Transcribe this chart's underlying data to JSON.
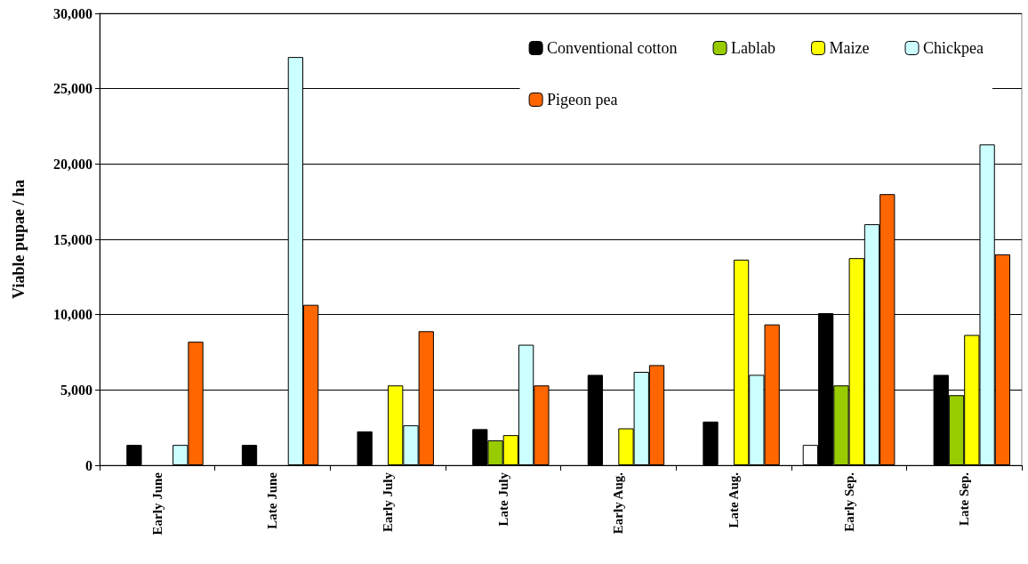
{
  "chart_data": {
    "type": "bar",
    "ylabel": "Viable pupae / ha",
    "categories": [
      "Early June",
      "Late June",
      "Early July",
      "Late July",
      "Early Aug.",
      "Late Aug.",
      "Early Sep.",
      "Late Sep."
    ],
    "series": [
      {
        "color": "#ffffff",
        "values": [
          null,
          null,
          null,
          null,
          null,
          null,
          1350,
          null
        ]
      },
      {
        "name": "Conventional cotton",
        "color": "#000000",
        "values": [
          1350,
          1350,
          2250,
          2400,
          6000,
          2900,
          10100,
          6000
        ]
      },
      {
        "name": "Lablab",
        "color": "#99cc00",
        "values": [
          null,
          null,
          null,
          1650,
          null,
          null,
          5300,
          4650
        ]
      },
      {
        "name": "Maize",
        "color": "#ffff00",
        "values": [
          null,
          null,
          5300,
          2000,
          2450,
          13650,
          13750,
          8650
        ]
      },
      {
        "name": "Chickpea",
        "color": "#ccffff",
        "values": [
          1350,
          27100,
          2650,
          8000,
          6200,
          6000,
          16000,
          21300
        ]
      },
      {
        "name": "Pigeon pea",
        "color": "#ff6600",
        "values": [
          8200,
          10650,
          8900,
          5300,
          6650,
          9350,
          18000,
          14000
        ]
      }
    ],
    "ylim": [
      0,
      30000
    ],
    "yticks": [
      0,
      {
        "value": 5000,
        "label": "5,000"
      },
      {
        "value": 10000,
        "label": "10,000"
      },
      {
        "value": 15000,
        "label": "15,000"
      },
      {
        "value": 20000,
        "label": "20,000"
      },
      {
        "value": 25000,
        "label": "25,000"
      },
      {
        "value": 30000,
        "label": "30,000"
      }
    ],
    "grid": "y",
    "legend": "top right"
  }
}
